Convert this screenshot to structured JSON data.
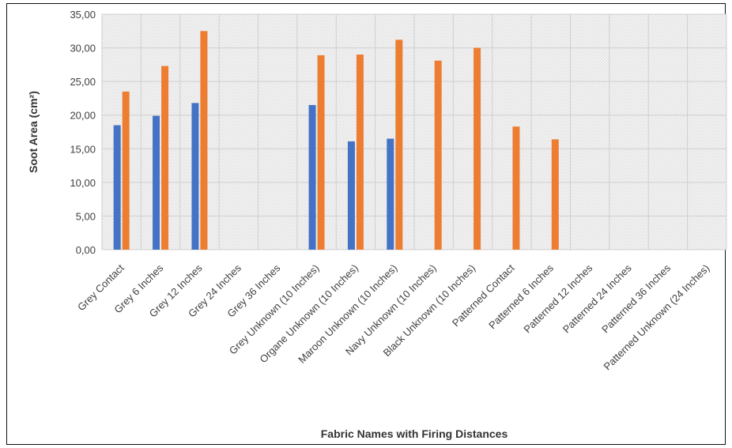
{
  "chart_data": {
    "type": "bar",
    "title": "",
    "xlabel": "Fabric Names with Firing Distances",
    "ylabel": "Soot Area (cm²)",
    "ylim": [
      0,
      35
    ],
    "yticks": [
      "0,00",
      "5,00",
      "10,00",
      "15,00",
      "20,00",
      "25,00",
      "30,00",
      "35,00"
    ],
    "grid": true,
    "legend": "none",
    "categories": [
      "Grey Contact",
      "Grey 6 Inches",
      "Grey 12 Inches",
      "Grey 24 Inches",
      "Grey 36 Inches",
      "Grey Unknown (10 Inches)",
      "Organe Unknown (10 Inches)",
      "Maroon Unknown (10 Inches)",
      "Navy Unknown (10 Inches)",
      "Black Unknown (10 Inches)",
      "Patterned Contact",
      "Patterned 6 Inches",
      "Patterned 12 Inches",
      "Patterned 24 Inches",
      "Patterned 36 Inches",
      "Patterned Unknown (24 Inches)"
    ],
    "series": [
      {
        "color": "#4472c4",
        "values": [
          18.5,
          19.9,
          21.8,
          0,
          0,
          21.5,
          16.1,
          16.5,
          0,
          0,
          0,
          0,
          0,
          0,
          0,
          0
        ]
      },
      {
        "color": "#ed7d31",
        "values": [
          23.5,
          27.3,
          32.5,
          0,
          0,
          28.9,
          29.0,
          31.2,
          28.1,
          30.0,
          18.3,
          16.4,
          0,
          0,
          0,
          0
        ]
      }
    ]
  }
}
